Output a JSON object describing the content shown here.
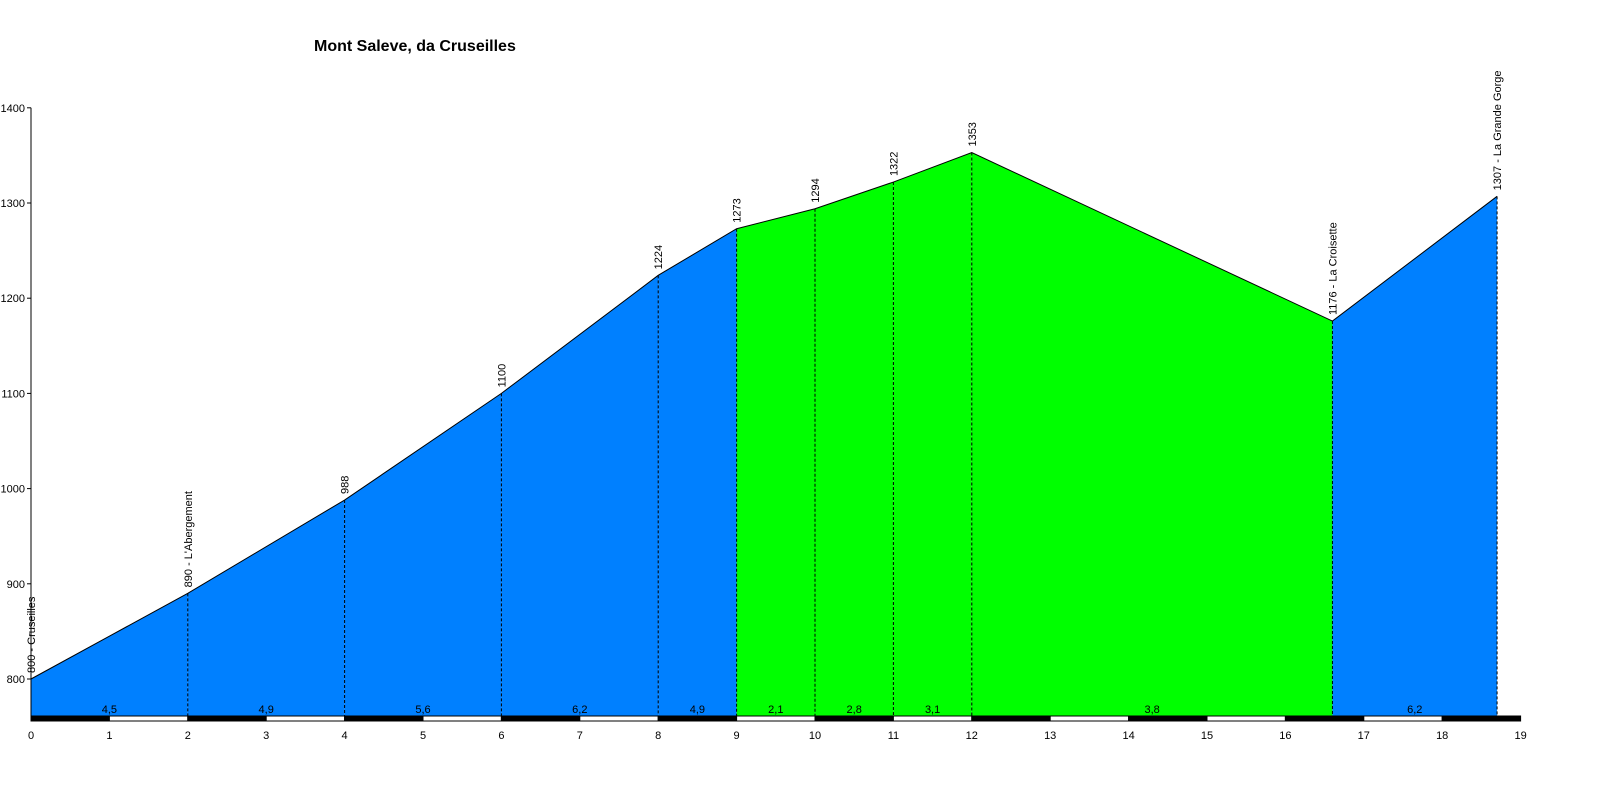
{
  "chart_data": {
    "type": "area",
    "title": "Mont Saleve, da Cruseilles",
    "xlabel": "",
    "ylabel": "",
    "xlim": [
      0,
      19
    ],
    "ylim": [
      760,
      1400
    ],
    "y_ticks": [
      800,
      900,
      1000,
      1100,
      1200,
      1300,
      1400
    ],
    "x_ticks": [
      0,
      1,
      2,
      3,
      4,
      5,
      6,
      7,
      8,
      9,
      10,
      11,
      12,
      13,
      14,
      15,
      16,
      17,
      18,
      19
    ],
    "profile": [
      {
        "km": 0,
        "alt": 800,
        "label": "800 - Cruseilles"
      },
      {
        "km": 2,
        "alt": 890,
        "label": "890 - L'Abergement"
      },
      {
        "km": 4,
        "alt": 988,
        "label": "988"
      },
      {
        "km": 6,
        "alt": 1100,
        "label": "1100"
      },
      {
        "km": 8,
        "alt": 1224,
        "label": "1224"
      },
      {
        "km": 9,
        "alt": 1273,
        "label": "1273"
      },
      {
        "km": 10,
        "alt": 1294,
        "label": "1294"
      },
      {
        "km": 11,
        "alt": 1322,
        "label": "1322"
      },
      {
        "km": 12,
        "alt": 1353,
        "label": "1353"
      },
      {
        "km": 16.6,
        "alt": 1176,
        "label": "1176 - La Croisette"
      },
      {
        "km": 18.7,
        "alt": 1307,
        "label": "1307 - La Grande Gorge"
      }
    ],
    "segments": [
      {
        "from": 0,
        "to": 2,
        "gradient": "4,5",
        "color": "#0080ff"
      },
      {
        "from": 2,
        "to": 4,
        "gradient": "4,9",
        "color": "#0080ff"
      },
      {
        "from": 4,
        "to": 6,
        "gradient": "5,6",
        "color": "#0080ff"
      },
      {
        "from": 6,
        "to": 8,
        "gradient": "6,2",
        "color": "#0080ff"
      },
      {
        "from": 8,
        "to": 9,
        "gradient": "4,9",
        "color": "#0080ff"
      },
      {
        "from": 9,
        "to": 10,
        "gradient": "2,1",
        "color": "#00ff00"
      },
      {
        "from": 10,
        "to": 11,
        "gradient": "2,8",
        "color": "#00ff00"
      },
      {
        "from": 11,
        "to": 12,
        "gradient": "3,1",
        "color": "#00ff00"
      },
      {
        "from": 12,
        "to": 16.6,
        "gradient": "3,8",
        "color": "#00ff00"
      },
      {
        "from": 16.6,
        "to": 18.7,
        "gradient": "6,2",
        "color": "#0080ff"
      }
    ],
    "colors": {
      "climb": "#0080ff",
      "descent": "#00ff00",
      "axis": "#000000",
      "tick_label": "#000000"
    },
    "grid": false,
    "legend": "none"
  }
}
